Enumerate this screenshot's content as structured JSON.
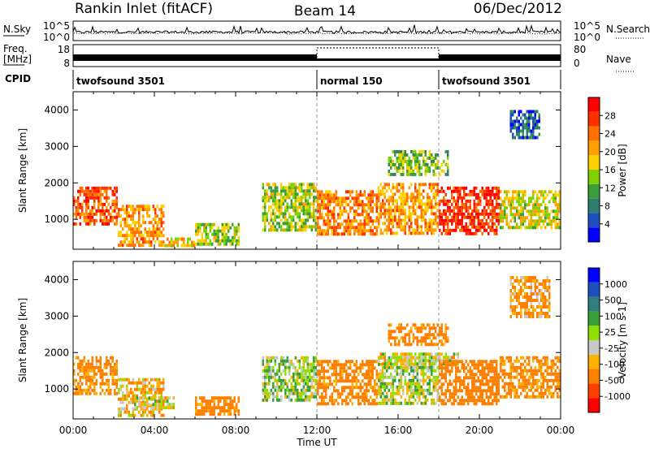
{
  "header": {
    "title": "Rankin Inlet (fitACF)",
    "beam": "Beam 14",
    "date": "06/Dec/2012"
  },
  "noise_panel": {
    "left_label": "N.Sky",
    "right_label": "N.Search",
    "left_ticks": [
      "10^5",
      "10^0"
    ],
    "right_ticks": [
      "10^5",
      "10^0"
    ]
  },
  "freq_panel": {
    "left_label_line1": "Freq.",
    "left_label_line2": "[MHz]",
    "right_label": "Nave",
    "left_ticks": [
      "18",
      "8"
    ],
    "right_ticks": [
      "80",
      "0"
    ]
  },
  "cpid": {
    "label": "CPID",
    "modes": [
      {
        "name": "twofsound 3501",
        "start_hour": 0,
        "end_hour": 12
      },
      {
        "name": "normal 150",
        "start_hour": 12,
        "end_hour": 18
      },
      {
        "name": "twofsound 3501",
        "start_hour": 18,
        "end_hour": 24
      }
    ]
  },
  "chart_data": [
    {
      "type": "heatmap",
      "title": "",
      "ylabel": "Slant Range [km]",
      "xlabel": "",
      "xlim": [
        0,
        24
      ],
      "ylim": [
        180,
        4500
      ],
      "yticks": [
        1000,
        2000,
        3000,
        4000
      ],
      "colorbar": {
        "label": "Power [dB]",
        "ticks": [
          "28",
          "24",
          "20",
          "16",
          "12",
          "8",
          "4"
        ],
        "colors": [
          "#0000ff",
          "#1f4fbf",
          "#2f7f6f",
          "#3a9f3a",
          "#7fd000",
          "#ffd000",
          "#ffa000",
          "#ff7000",
          "#ff3000",
          "#ff0000"
        ]
      },
      "regions": [
        {
          "t0": 0.0,
          "t1": 2.2,
          "r0": 900,
          "r1": 1900,
          "value": 24
        },
        {
          "t0": 2.2,
          "t1": 4.5,
          "r0": 300,
          "r1": 1400,
          "value": 20
        },
        {
          "t0": 4.5,
          "t1": 6.0,
          "r0": 250,
          "r1": 500,
          "value": 18
        },
        {
          "t0": 6.0,
          "t1": 8.2,
          "r0": 300,
          "r1": 900,
          "value": 14
        },
        {
          "t0": 9.3,
          "t1": 12.0,
          "r0": 700,
          "r1": 2000,
          "value": 14
        },
        {
          "t0": 12.0,
          "t1": 15.0,
          "r0": 600,
          "r1": 1800,
          "value": 22
        },
        {
          "t0": 15.0,
          "t1": 18.0,
          "r0": 600,
          "r1": 2000,
          "value": 20
        },
        {
          "t0": 18.0,
          "t1": 21.0,
          "r0": 600,
          "r1": 1900,
          "value": 26
        },
        {
          "t0": 21.0,
          "t1": 24.0,
          "r0": 800,
          "r1": 1800,
          "value": 16
        },
        {
          "t0": 15.5,
          "t1": 18.5,
          "r0": 2200,
          "r1": 2900,
          "value": 12
        },
        {
          "t0": 21.5,
          "t1": 23.0,
          "r0": 3200,
          "r1": 4000,
          "value": 6
        }
      ]
    },
    {
      "type": "heatmap",
      "title": "",
      "ylabel": "Slant Range [km]",
      "xlabel": "Time UT",
      "xlim": [
        0,
        24
      ],
      "ylim": [
        180,
        4500
      ],
      "xticks": [
        "00:00",
        "04:00",
        "08:00",
        "12:00",
        "16:00",
        "20:00",
        "00:00"
      ],
      "yticks": [
        1000,
        2000,
        3000,
        4000
      ],
      "colorbar": {
        "label": "Velocity [m s-1]",
        "ticks": [
          "1000",
          "500",
          "100",
          "25",
          "-25",
          "-100",
          "-500",
          "-1000"
        ],
        "colors": [
          "#ff0000",
          "#ff4000",
          "#ff8000",
          "#ffb000",
          "#c8c8c8",
          "#90e000",
          "#3aa03a",
          "#2f7f7f",
          "#1f4fbf",
          "#0000ff"
        ]
      },
      "regions": [
        {
          "t0": 0.0,
          "t1": 2.2,
          "r0": 900,
          "r1": 1900,
          "value": -150
        },
        {
          "t0": 2.2,
          "t1": 4.5,
          "r0": 250,
          "r1": 1300,
          "value": -60
        },
        {
          "t0": 3.0,
          "t1": 5.0,
          "r0": 500,
          "r1": 800,
          "value": 0
        },
        {
          "t0": 6.0,
          "t1": 8.2,
          "r0": 300,
          "r1": 800,
          "value": -200
        },
        {
          "t0": 9.3,
          "t1": 12.0,
          "r0": 700,
          "r1": 1900,
          "value": 60
        },
        {
          "t0": 12.0,
          "t1": 15.0,
          "r0": 600,
          "r1": 1800,
          "value": -200
        },
        {
          "t0": 15.0,
          "t1": 18.0,
          "r0": 600,
          "r1": 1900,
          "value": 30
        },
        {
          "t0": 15.0,
          "t1": 19.0,
          "r0": 1700,
          "r1": 2000,
          "value": 0
        },
        {
          "t0": 18.0,
          "t1": 21.0,
          "r0": 600,
          "r1": 1800,
          "value": -300
        },
        {
          "t0": 21.0,
          "t1": 24.0,
          "r0": 800,
          "r1": 1900,
          "value": -150
        },
        {
          "t0": 15.5,
          "t1": 18.5,
          "r0": 2200,
          "r1": 2800,
          "value": -180
        },
        {
          "t0": 21.5,
          "t1": 23.5,
          "r0": 3000,
          "r1": 4100,
          "value": -120
        }
      ]
    }
  ]
}
